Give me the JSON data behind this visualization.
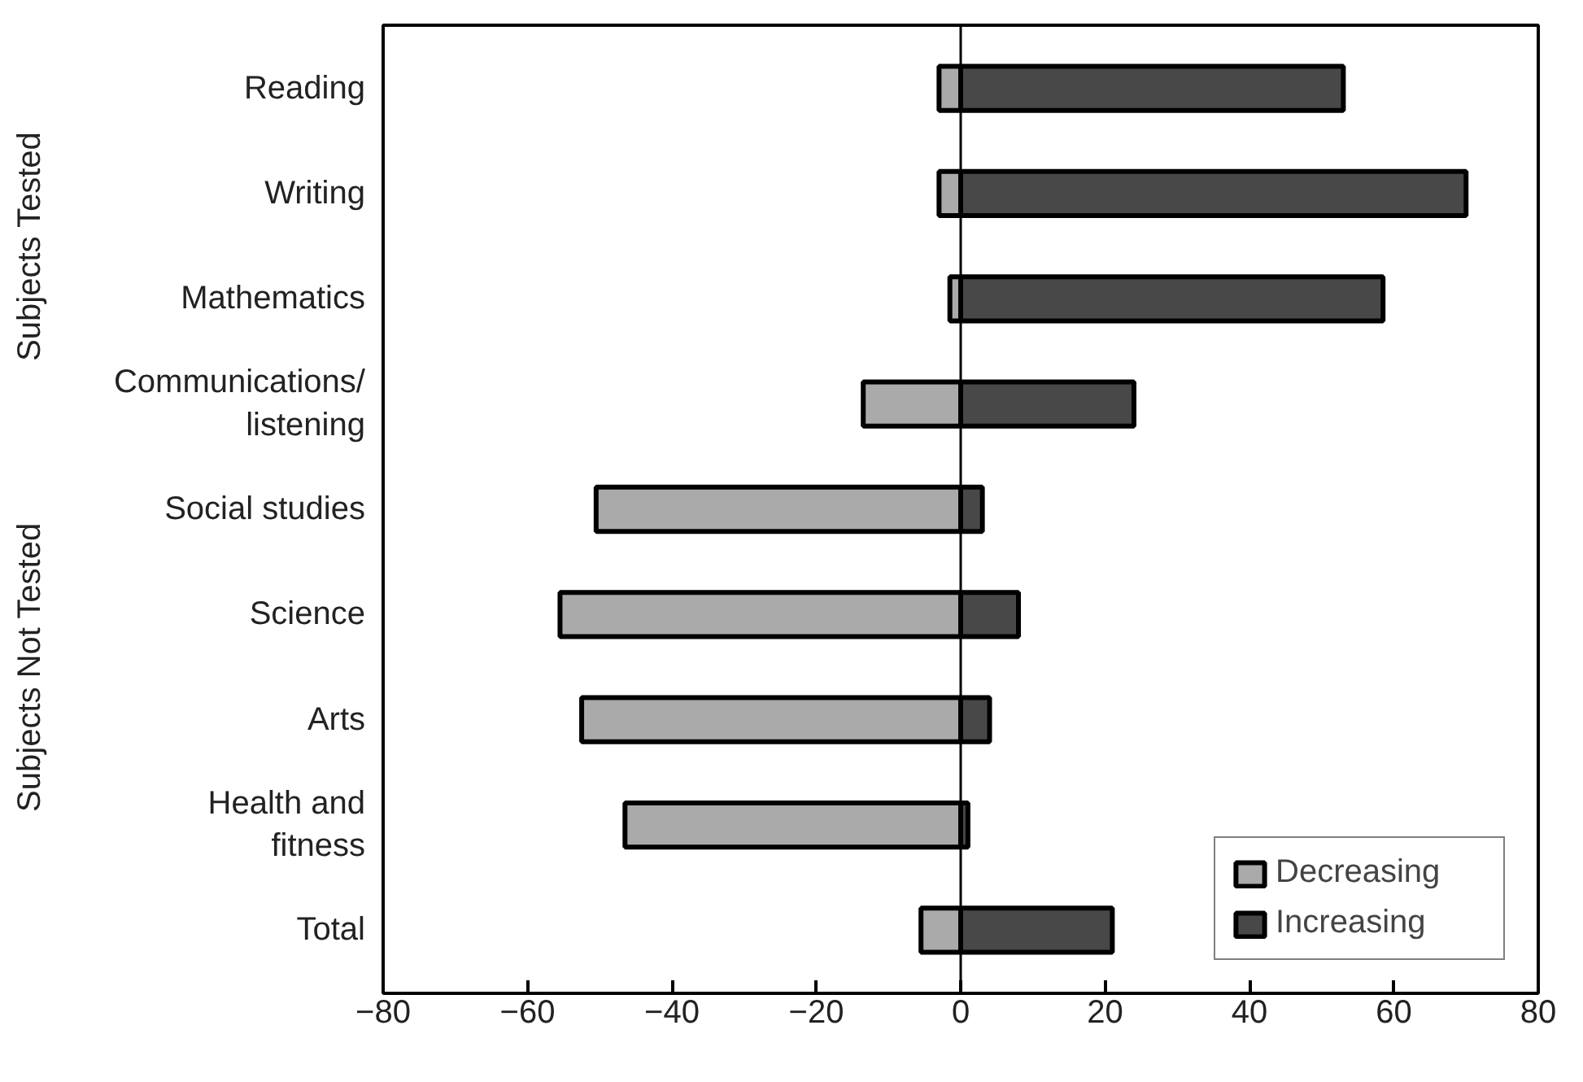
{
  "chart_data": {
    "type": "bar",
    "orientation": "horizontal",
    "categories": [
      "Reading",
      "Writing",
      "Mathematics",
      "Communications/\nlistening",
      "Social studies",
      "Science",
      "Arts",
      "Health and\nfitness",
      "Total"
    ],
    "series": [
      {
        "name": "Decreasing",
        "color": "#aaaaaa",
        "values": [
          -3,
          -3,
          -1.5,
          -13.5,
          -50.5,
          -55.5,
          -52.5,
          -46.5,
          -5.5
        ]
      },
      {
        "name": "Increasing",
        "color": "#484848",
        "values": [
          53,
          70,
          58.5,
          24,
          3,
          8,
          4,
          1,
          21
        ]
      }
    ],
    "xlim": [
      -80,
      80
    ],
    "xticks": [
      {
        "value": -80,
        "label": "−80"
      },
      {
        "value": -60,
        "label": "−60"
      },
      {
        "value": -40,
        "label": "−40"
      },
      {
        "value": -20,
        "label": "−20"
      },
      0,
      20,
      40,
      60,
      80
    ],
    "ref_lines": [
      {
        "axis": "x",
        "value": 0,
        "color": "#000000"
      }
    ],
    "annotations": [
      "Subjects Tested",
      "Subjects Not Tested"
    ],
    "legend": "bottom right",
    "grid": false,
    "stacked": true
  }
}
